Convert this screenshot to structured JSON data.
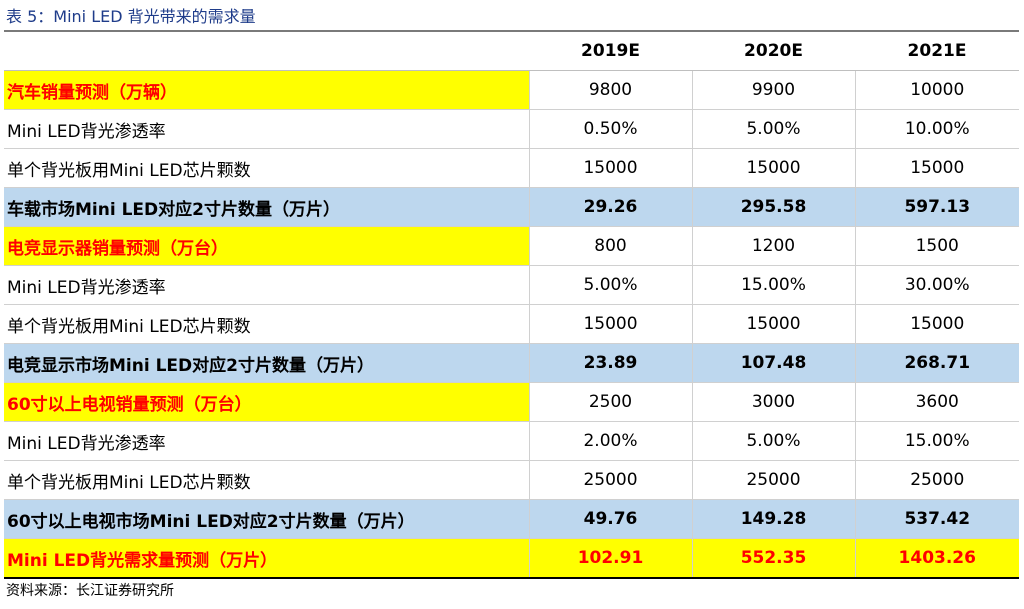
{
  "title": "表 5：Mini LED 背光带来的需求量",
  "columns": [
    "2019E",
    "2020E",
    "2021E"
  ],
  "rows": [
    {
      "type": "category",
      "label": "汽车销量预测（万辆）",
      "values": [
        "9800",
        "9900",
        "10000"
      ]
    },
    {
      "type": "normal",
      "label": "Mini LED背光渗透率",
      "values": [
        "0.50%",
        "5.00%",
        "10.00%"
      ]
    },
    {
      "type": "normal",
      "label": "单个背光板用Mini LED芯片颗数",
      "values": [
        "15000",
        "15000",
        "15000"
      ]
    },
    {
      "type": "subtotal",
      "label": "车载市场Mini LED对应2寸片数量（万片）",
      "values": [
        "29.26",
        "295.58",
        "597.13"
      ]
    },
    {
      "type": "category",
      "label": "电竞显示器销量预测（万台）",
      "values": [
        "800",
        "1200",
        "1500"
      ]
    },
    {
      "type": "normal",
      "label": "Mini LED背光渗透率",
      "values": [
        "5.00%",
        "15.00%",
        "30.00%"
      ]
    },
    {
      "type": "normal",
      "label": "单个背光板用Mini LED芯片颗数",
      "values": [
        "15000",
        "15000",
        "15000"
      ]
    },
    {
      "type": "subtotal",
      "label": "电竞显示市场Mini LED对应2寸片数量（万片）",
      "values": [
        "23.89",
        "107.48",
        "268.71"
      ]
    },
    {
      "type": "category",
      "label": "60寸以上电视销量预测（万台）",
      "values": [
        "2500",
        "3000",
        "3600"
      ]
    },
    {
      "type": "normal",
      "label": "Mini LED背光渗透率",
      "values": [
        "2.00%",
        "5.00%",
        "15.00%"
      ]
    },
    {
      "type": "normal",
      "label": "单个背光板用Mini LED芯片颗数",
      "values": [
        "25000",
        "25000",
        "25000"
      ]
    },
    {
      "type": "subtotal",
      "label": "60寸以上电视市场Mini LED对应2寸片数量（万片）",
      "values": [
        "49.76",
        "149.28",
        "537.42"
      ]
    },
    {
      "type": "total",
      "label": "Mini LED背光需求量预测（万片）",
      "values": [
        "102.91",
        "552.35",
        "1403.26"
      ]
    }
  ],
  "source": "资料来源：长江证券研究所",
  "colors": {
    "title": "#1f3c8a",
    "highlight": "#ffff00",
    "highlight_text": "#ff0000",
    "subtotal_bg": "#bdd7ee"
  }
}
